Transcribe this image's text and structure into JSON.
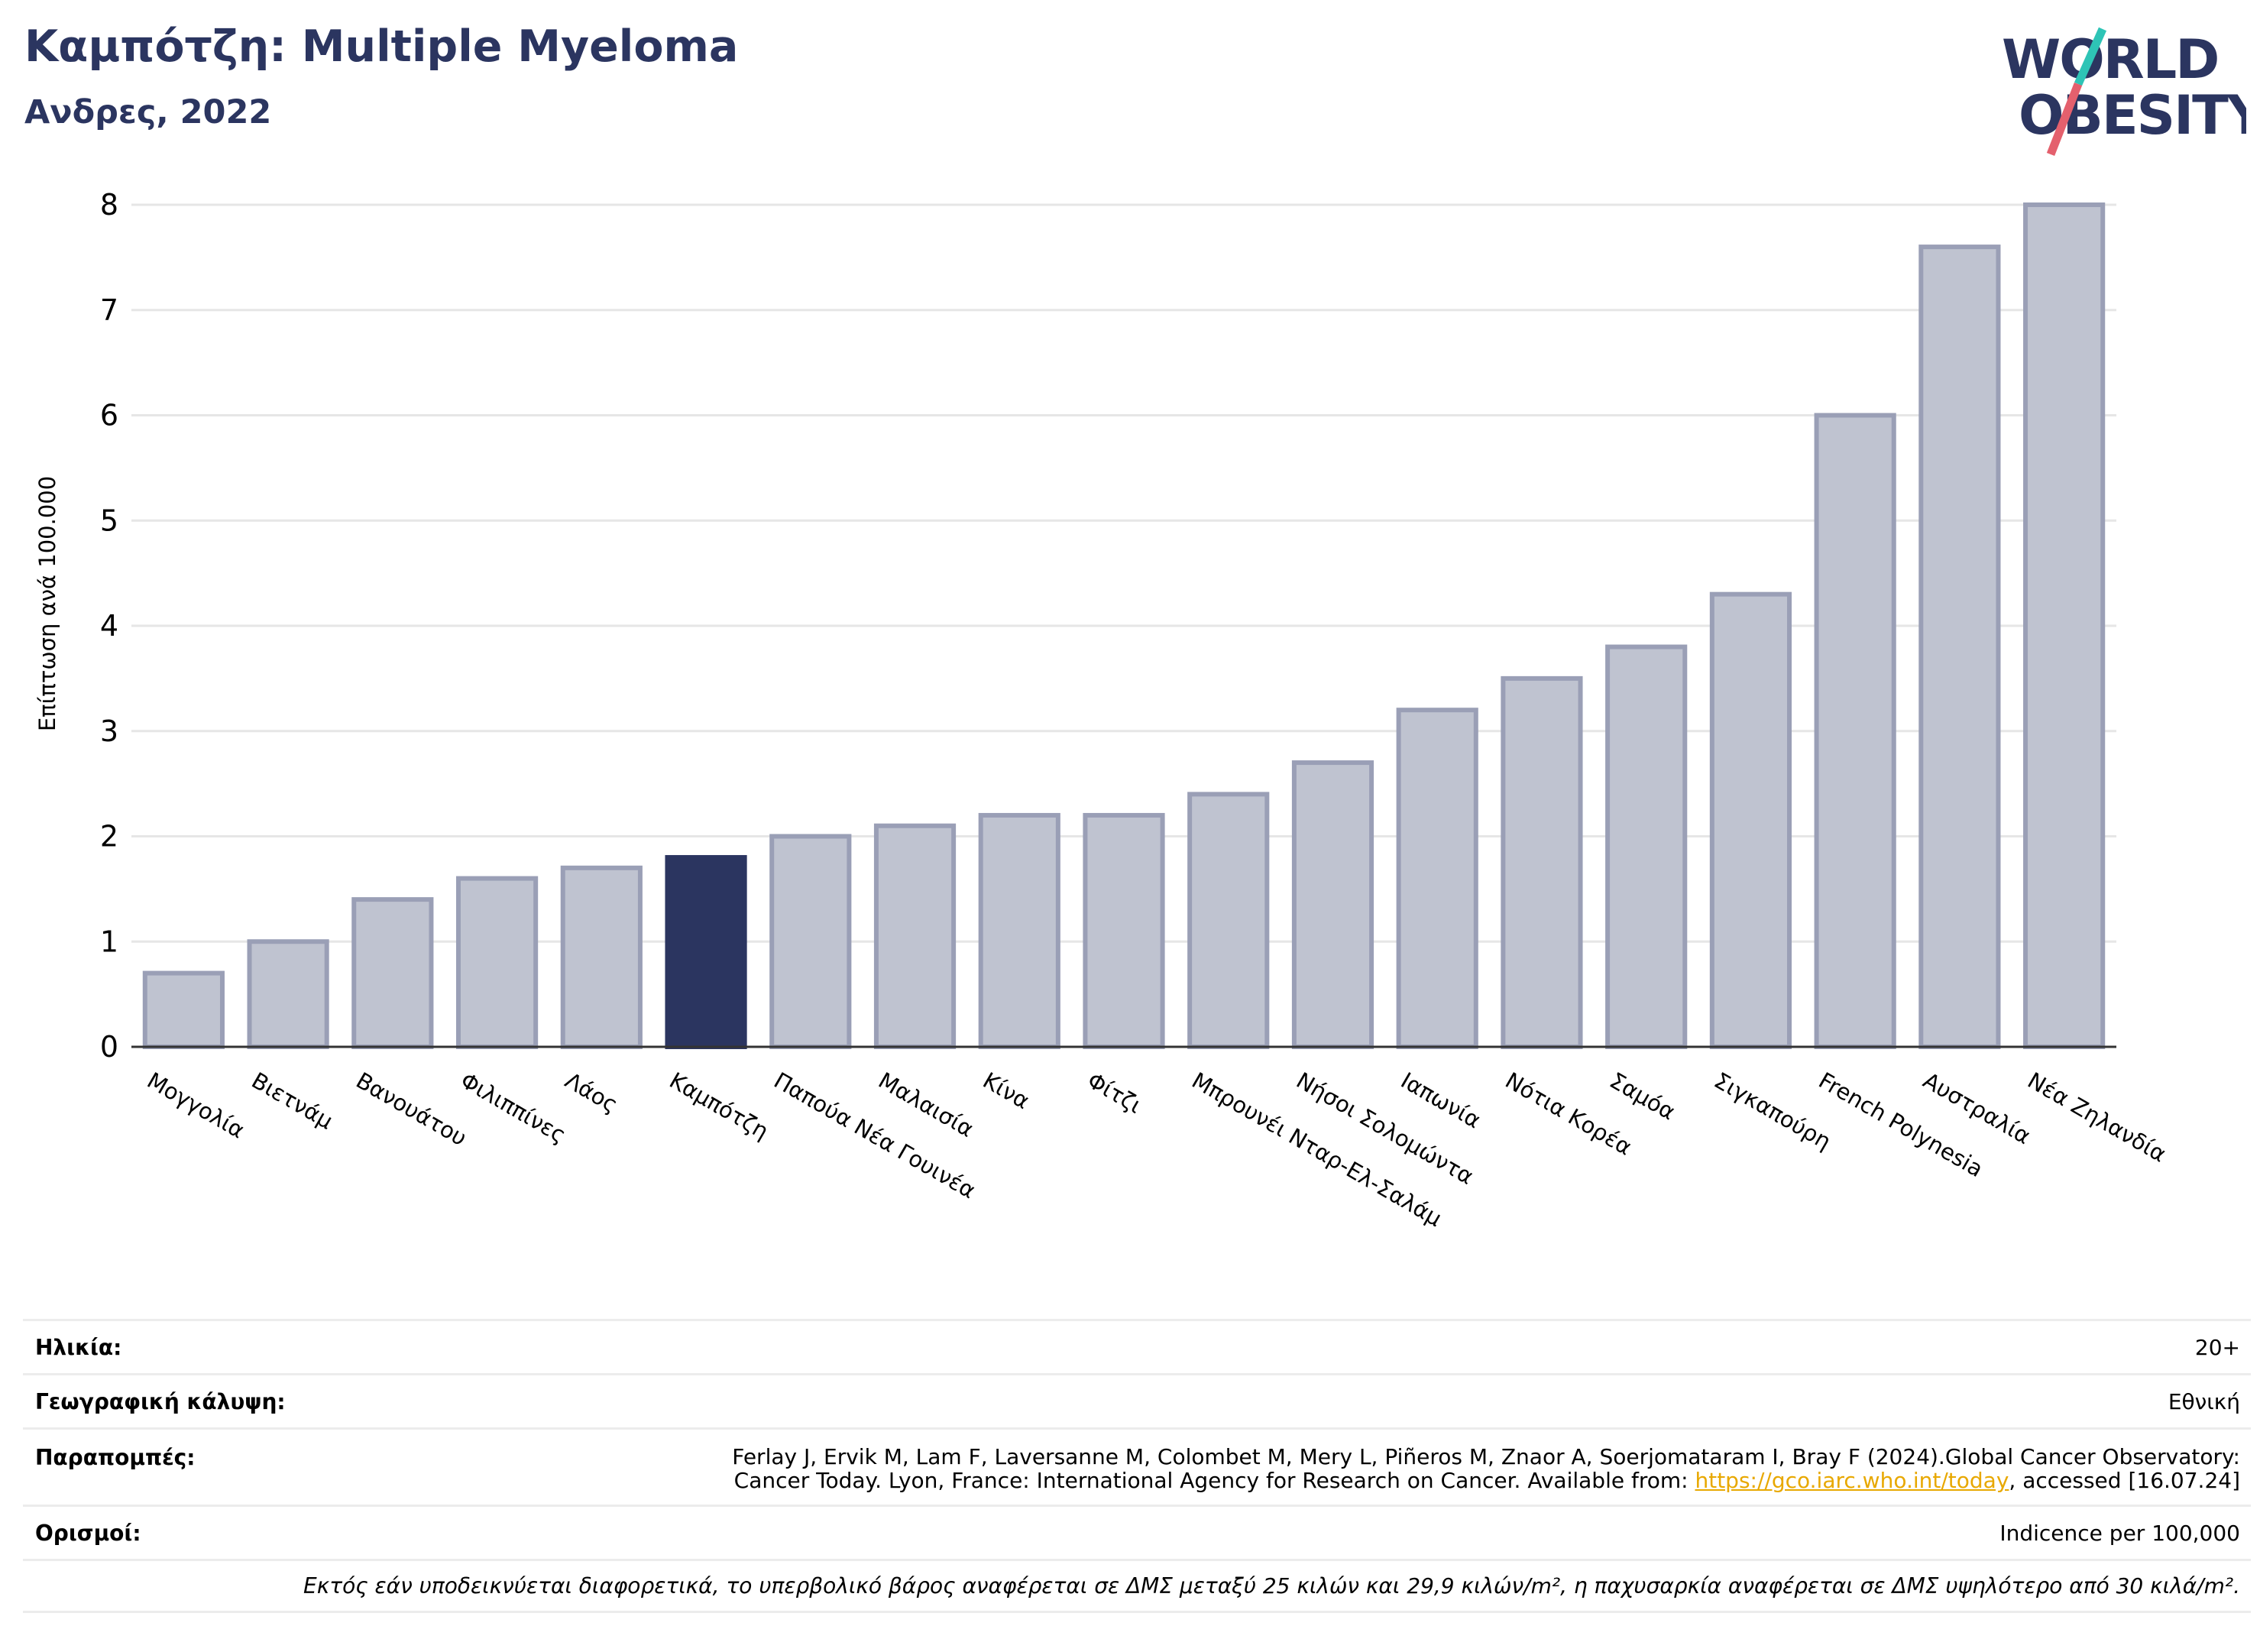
{
  "header": {
    "title": "Καμπότζη: Multiple Myeloma",
    "subtitle": "Ανδρες, 2022"
  },
  "logo": {
    "line1": "WORLD",
    "line2": "OBESITY",
    "slash_color_top": "#2ec4b6",
    "slash_color_bottom": "#e4606d"
  },
  "chart_data": {
    "type": "bar",
    "title": "Καμπότζη: Multiple Myeloma",
    "subtitle": "Ανδρες, 2022",
    "ylabel": "Επίπτωση ανά 100.000",
    "xlabel": "",
    "ylim": [
      0,
      8
    ],
    "yticks": [
      0,
      1,
      2,
      3,
      4,
      5,
      6,
      7,
      8
    ],
    "grid": true,
    "highlight_category": "Καμπότζη",
    "colors": {
      "bar": "#bfc3d0",
      "bar_edge": "#9a9fb6",
      "highlight": "#2b3560"
    },
    "categories": [
      "Μογγολία",
      "Βιετνάμ",
      "Βανουάτου",
      "Φιλιππίνες",
      "Λάος",
      "Καμπότζη",
      "Παπούα Νέα Γουινέα",
      "Μαλαισία",
      "Κίνα",
      "Φίτζι",
      "Μπρουνέι Νταρ-Ελ-Σαλάμ",
      "Νήσοι Σολομώντα",
      "Ιαπωνία",
      "Νότια Κορέα",
      "Σαμόα",
      "Σιγκαπούρη",
      "French Polynesia",
      "Αυστραλία",
      "Νέα Ζηλανδία"
    ],
    "values": [
      0.7,
      1.0,
      1.4,
      1.6,
      1.7,
      1.8,
      2.0,
      2.1,
      2.2,
      2.2,
      2.4,
      2.7,
      3.2,
      3.5,
      3.8,
      4.3,
      6.0,
      7.6,
      8.0
    ]
  },
  "meta": {
    "age_label": "Ηλικία:",
    "age_value": "20+",
    "coverage_label": "Γεωγραφική κάλυψη:",
    "coverage_value": "Εθνική",
    "references_label": "Παραπομπές:",
    "references_line1": "Ferlay J, Ervik M, Lam F, Laversanne M, Colombet M, Mery L, Piñeros M, Znaor A, Soerjomataram I, Bray F (2024).Global Cancer Observatory:",
    "references_line2_pre": "Cancer Today. Lyon, France: International Agency for Research on Cancer. Available from: ",
    "references_link": "https://gco.iarc.who.int/today",
    "references_line2_post": ", accessed [16.07.24]",
    "definitions_label": "Ορισμοί:",
    "definitions_value": "Indicence per 100,000",
    "note": "Εκτός εάν υποδεικνύεται διαφορετικά, το υπερβολικό βάρος αναφέρεται σε ΔΜΣ μεταξύ 25 κιλών και 29,9 κιλών/m², η παχυσαρκία αναφέρεται σε ΔΜΣ υψηλότερο από 30 κιλά/m²."
  }
}
